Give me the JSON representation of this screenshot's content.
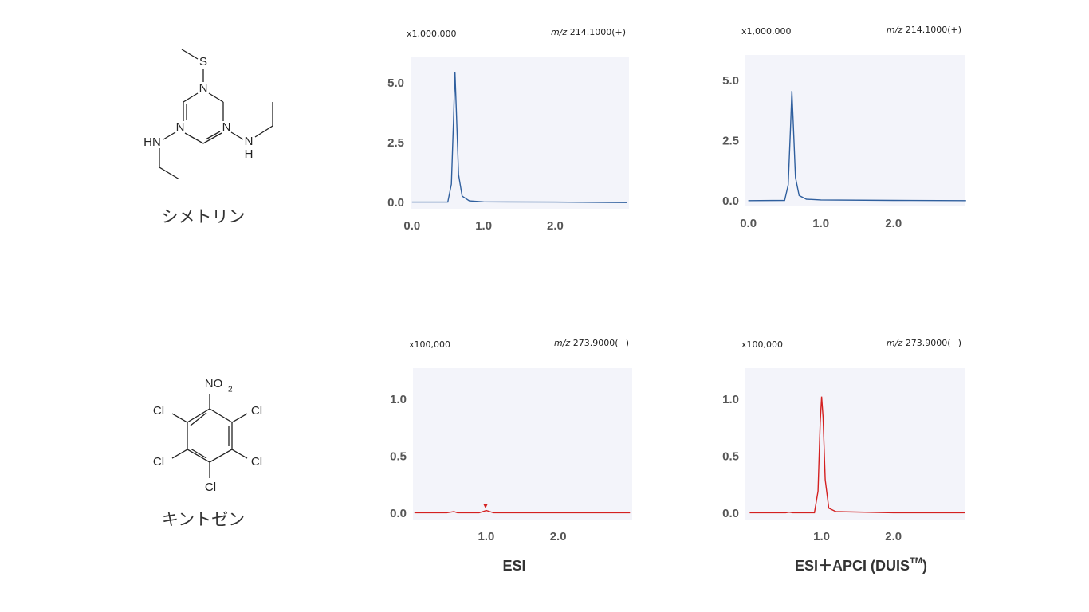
{
  "compounds": [
    {
      "name": "シメトリン",
      "atoms": [
        "S",
        "N",
        "N",
        "N",
        "HN",
        "N",
        "H"
      ]
    },
    {
      "name": "キントゼン",
      "atoms": [
        "NO",
        "2",
        "Cl",
        "Cl",
        "Cl",
        "Cl",
        "Cl"
      ]
    }
  ],
  "columns": {
    "esi": "ESI",
    "duis": "ESI＋APCI (DUIS",
    "tm": "TM",
    "close": ")"
  },
  "chart_data": [
    {
      "type": "line",
      "scale_label": "x1,000,000",
      "mz_prefix": "m/z",
      "mz_value": "214.1000(+)",
      "color": "#2f5f9e",
      "x": [
        0,
        0.5,
        0.55,
        0.58,
        0.6,
        0.62,
        0.65,
        0.7,
        0.8,
        1.0,
        2.0,
        3.0
      ],
      "values": [
        0.05,
        0.05,
        0.8,
        3.5,
        5.5,
        3.8,
        1.2,
        0.3,
        0.1,
        0.06,
        0.05,
        0.03
      ],
      "xlim": [
        -0.02,
        3.03
      ],
      "ylim": [
        -0.23,
        6.1
      ],
      "xticks": [
        {
          "value": 0,
          "label": "0.0"
        },
        {
          "value": 1,
          "label": "1.0"
        },
        {
          "value": 2,
          "label": "2.0"
        }
      ],
      "yticks": [
        {
          "value": 0,
          "label": "0.0"
        },
        {
          "value": 2.5,
          "label": "2.5"
        },
        {
          "value": 5,
          "label": "5.0"
        }
      ]
    },
    {
      "type": "line",
      "scale_label": "x1,000,000",
      "mz_prefix": "m/z",
      "mz_value": "214.1000(+)",
      "color": "#2f5f9e",
      "x": [
        0,
        0.5,
        0.55,
        0.58,
        0.6,
        0.62,
        0.65,
        0.7,
        0.8,
        1.0,
        2.0,
        3.0
      ],
      "values": [
        0.04,
        0.05,
        0.7,
        3.0,
        4.6,
        3.2,
        1.0,
        0.25,
        0.1,
        0.07,
        0.05,
        0.04
      ],
      "xlim": [
        -0.04,
        2.98
      ],
      "ylim": [
        -0.2,
        6.1
      ],
      "xticks": [
        {
          "value": 0,
          "label": "0.0"
        },
        {
          "value": 1,
          "label": "1.0"
        },
        {
          "value": 2,
          "label": "2.0"
        }
      ],
      "yticks": [
        {
          "value": 0,
          "label": "0.0"
        },
        {
          "value": 2.5,
          "label": "2.5"
        },
        {
          "value": 5,
          "label": "5.0"
        }
      ]
    },
    {
      "type": "line",
      "scale_label": "x100,000",
      "mz_prefix": "m/z",
      "mz_value": "273.9000(−)",
      "color": "#d42020",
      "x": [
        0,
        0.45,
        0.5,
        0.55,
        0.6,
        0.9,
        0.95,
        1.0,
        1.05,
        1.1,
        2.0,
        3.0
      ],
      "values": [
        0.01,
        0.01,
        0.015,
        0.02,
        0.01,
        0.01,
        0.02,
        0.03,
        0.02,
        0.01,
        0.01,
        0.01
      ],
      "xlim": [
        -0.02,
        3.03
      ],
      "ylim": [
        -0.05,
        1.28
      ],
      "xticks": [
        {
          "value": 1,
          "label": "1.0"
        },
        {
          "value": 2,
          "label": "2.0"
        }
      ],
      "yticks": [
        {
          "value": 0,
          "label": "0.0"
        },
        {
          "value": 0.5,
          "label": "0.5"
        },
        {
          "value": 1,
          "label": "1.0"
        }
      ]
    },
    {
      "type": "line",
      "scale_label": "x100,000",
      "mz_prefix": "m/z",
      "mz_value": "273.9000(−)",
      "color": "#d42020",
      "x": [
        0,
        0.5,
        0.55,
        0.6,
        0.9,
        0.95,
        0.98,
        1.0,
        1.02,
        1.05,
        1.1,
        1.2,
        2.0,
        3.0
      ],
      "values": [
        0.01,
        0.01,
        0.015,
        0.01,
        0.01,
        0.2,
        0.8,
        1.03,
        0.85,
        0.3,
        0.05,
        0.02,
        0.01,
        0.01
      ],
      "xlim": [
        -0.06,
        2.99
      ],
      "ylim": [
        -0.05,
        1.28
      ],
      "xticks": [
        {
          "value": 1,
          "label": "1.0"
        },
        {
          "value": 2,
          "label": "2.0"
        }
      ],
      "yticks": [
        {
          "value": 0,
          "label": "0.0"
        },
        {
          "value": 0.5,
          "label": "0.5"
        },
        {
          "value": 1,
          "label": "1.0"
        }
      ]
    }
  ]
}
